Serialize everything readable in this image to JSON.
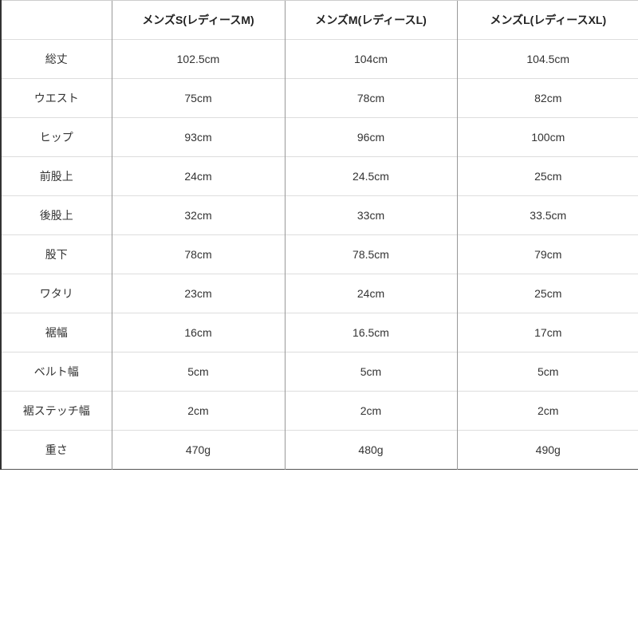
{
  "table": {
    "headers": [
      "",
      "メンズS(レディースM)",
      "メンズM(レディースL)",
      "メンズL(レディースXL)"
    ],
    "rows": [
      [
        "総丈",
        "102.5cm",
        "104cm",
        "104.5cm"
      ],
      [
        "ウエスト",
        "75cm",
        "78cm",
        "82cm"
      ],
      [
        "ヒップ",
        "93cm",
        "96cm",
        "100cm"
      ],
      [
        "前股上",
        "24cm",
        "24.5cm",
        "25cm"
      ],
      [
        "後股上",
        "32cm",
        "33cm",
        "33.5cm"
      ],
      [
        "股下",
        "78cm",
        "78.5cm",
        "79cm"
      ],
      [
        "ワタリ",
        "23cm",
        "24cm",
        "25cm"
      ],
      [
        "裾幅",
        "16cm",
        "16.5cm",
        "17cm"
      ],
      [
        "ベルト幅",
        "5cm",
        "5cm",
        "5cm"
      ],
      [
        "裾ステッチ幅",
        "2cm",
        "2cm",
        "2cm"
      ],
      [
        "重さ",
        "470g",
        "480g",
        "490g"
      ]
    ]
  }
}
